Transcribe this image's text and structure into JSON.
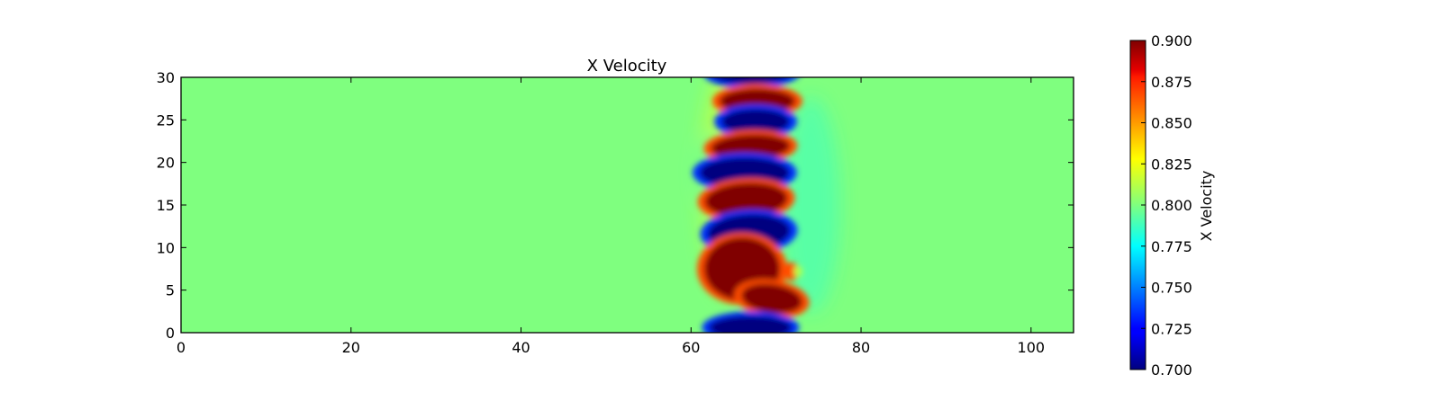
{
  "chart_data": {
    "type": "heatmap",
    "title": "X Velocity",
    "xlabel": "",
    "ylabel": "",
    "xlim": [
      0,
      105
    ],
    "ylim": [
      0,
      30
    ],
    "xticks": [
      0,
      20,
      40,
      60,
      80,
      100
    ],
    "yticks": [
      0,
      5,
      10,
      15,
      20,
      25,
      30
    ],
    "xtick_labels": [
      "0",
      "20",
      "40",
      "60",
      "80",
      "100"
    ],
    "ytick_labels": [
      "0",
      "5",
      "10",
      "15",
      "20",
      "25",
      "30"
    ],
    "background_value": 0.8,
    "colormap": "jet",
    "colorbar": {
      "label": "X Velocity",
      "range": [
        0.7,
        0.9
      ],
      "ticks": [
        0.7,
        0.725,
        0.75,
        0.775,
        0.8,
        0.825,
        0.85,
        0.875,
        0.9
      ],
      "tick_labels": [
        "0.700",
        "0.725",
        "0.750",
        "0.775",
        "0.800",
        "0.825",
        "0.850",
        "0.875",
        "0.900"
      ]
    },
    "features": [
      {
        "x": 67.2,
        "y": 30.5,
        "value": 0.7
      },
      {
        "x": 67.8,
        "y": 27.2,
        "value": 0.9
      },
      {
        "x": 67.6,
        "y": 24.8,
        "value": 0.7
      },
      {
        "x": 67.0,
        "y": 21.8,
        "value": 0.9
      },
      {
        "x": 66.3,
        "y": 18.8,
        "value": 0.7
      },
      {
        "x": 66.5,
        "y": 15.6,
        "value": 0.9
      },
      {
        "x": 66.8,
        "y": 11.8,
        "value": 0.7
      },
      {
        "x": 66.0,
        "y": 7.5,
        "value": 0.9
      },
      {
        "x": 69.5,
        "y": 4.0,
        "value": 0.9
      },
      {
        "x": 67.0,
        "y": 0.6,
        "value": 0.7
      }
    ],
    "grid": false
  }
}
